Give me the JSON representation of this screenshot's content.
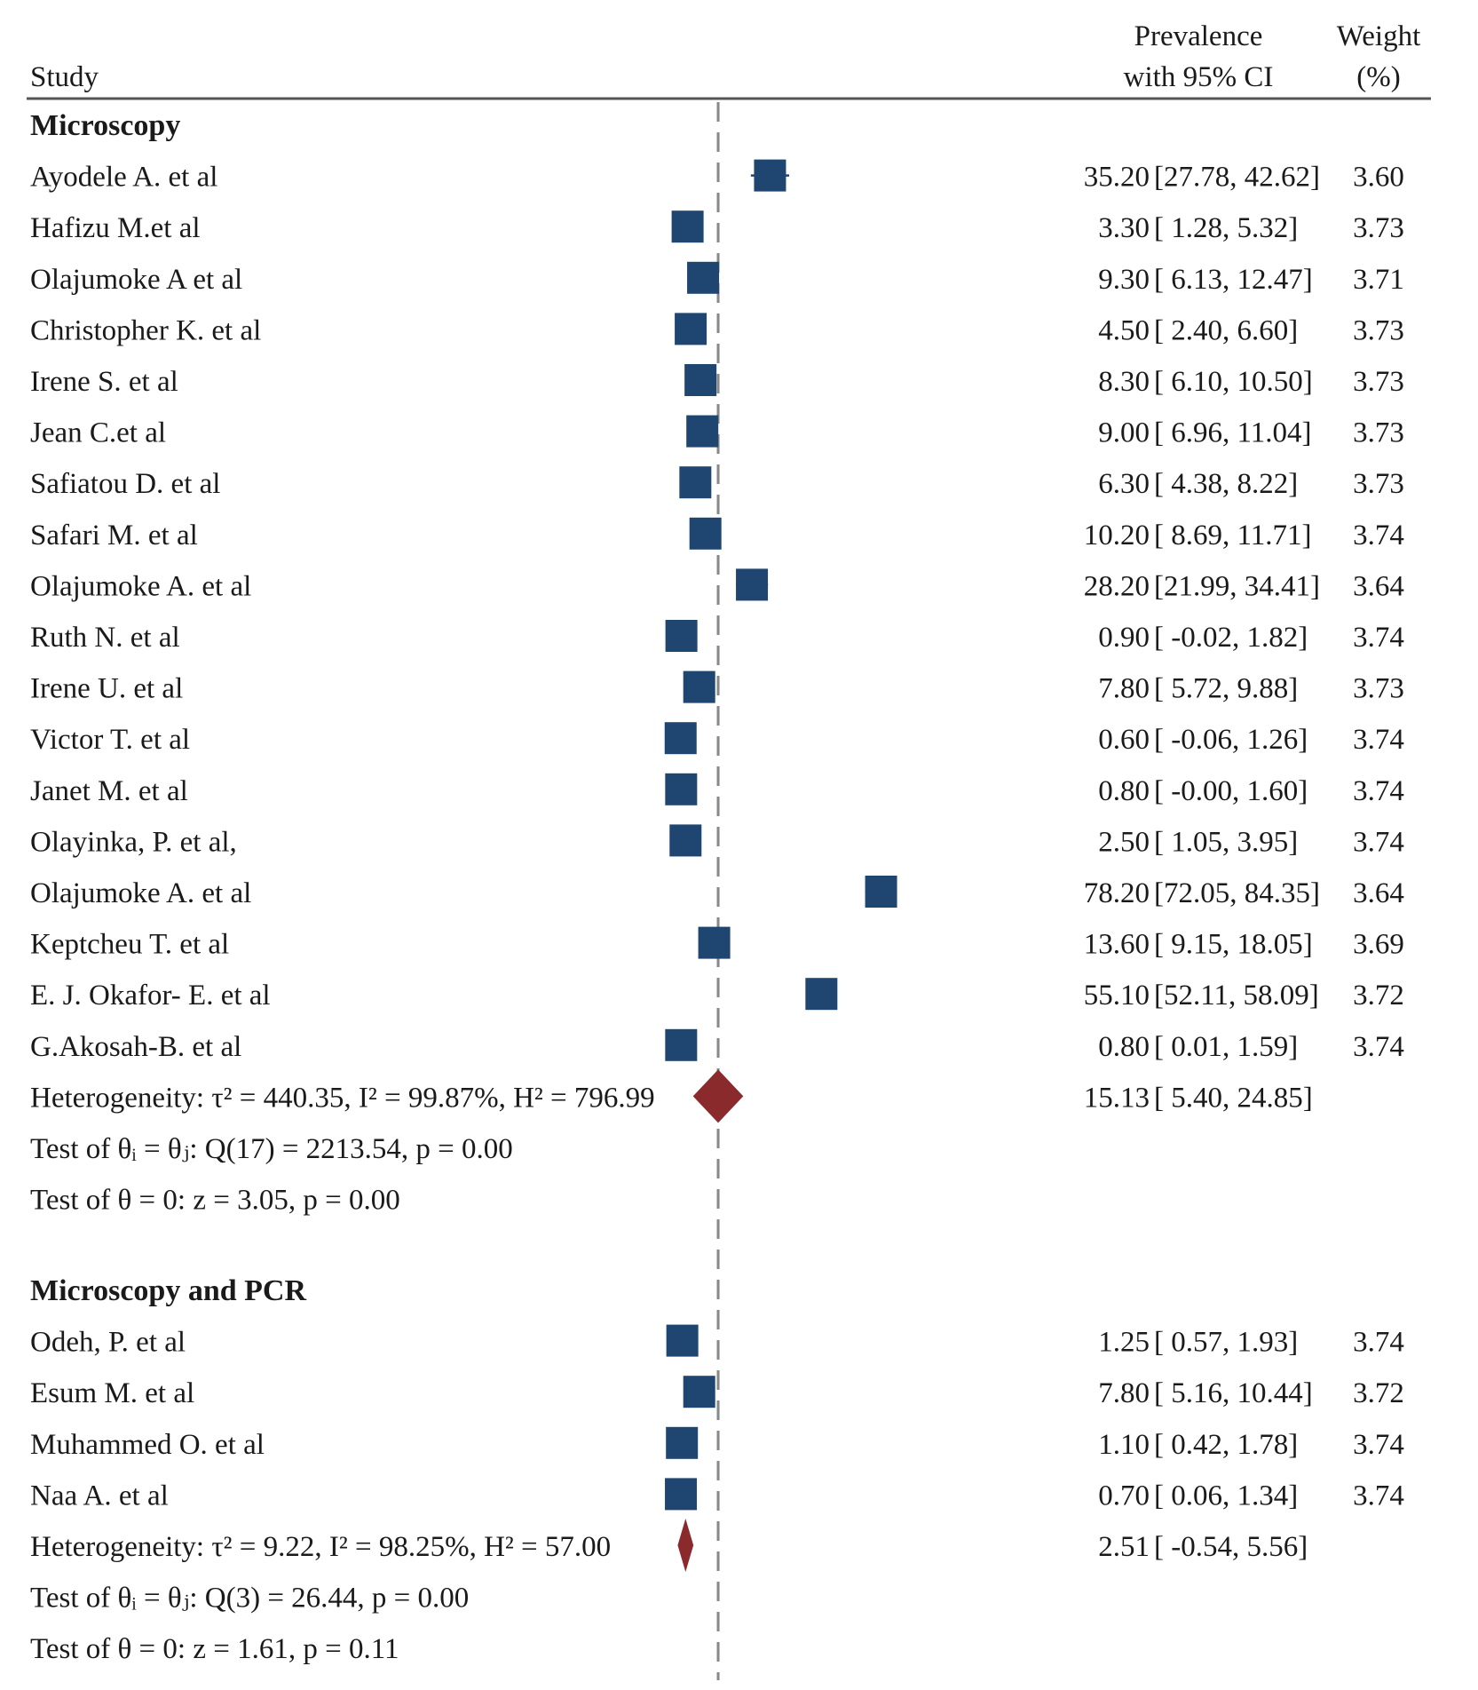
{
  "chart_data": {
    "type": "forest",
    "headers": {
      "study": "Study",
      "prevalence_line1": "Prevalence",
      "prevalence_line2": "with 95% CI",
      "weight_line1": "Weight",
      "weight_line2": "(%)"
    },
    "x_range": [
      -10,
      90
    ],
    "reference_line": 15.13,
    "colors": {
      "marker": "#1f4670",
      "diamond": "#8b2a2c",
      "reference": "#888888",
      "rule": "#555555"
    },
    "groups": [
      {
        "name": "Microscopy",
        "studies": [
          {
            "label": "Ayodele A.  et al",
            "est": 35.2,
            "lo": 27.78,
            "hi": 42.62,
            "est_text": "35.20",
            "ci_text": "[27.78, 42.62]",
            "weight": "3.60"
          },
          {
            "label": "Hafizu M.et al",
            "est": 3.3,
            "lo": 1.28,
            "hi": 5.32,
            "est_text": "3.30",
            "ci_text": "[  1.28,   5.32]",
            "weight": "3.73"
          },
          {
            "label": "Olajumoke A et al",
            "est": 9.3,
            "lo": 6.13,
            "hi": 12.47,
            "est_text": "9.30",
            "ci_text": "[  6.13,  12.47]",
            "weight": "3.71"
          },
          {
            "label": "Christopher K. et al",
            "est": 4.5,
            "lo": 2.4,
            "hi": 6.6,
            "est_text": "4.50",
            "ci_text": "[  2.40,   6.60]",
            "weight": "3.73"
          },
          {
            "label": "Irene S. et al",
            "est": 8.3,
            "lo": 6.1,
            "hi": 10.5,
            "est_text": "8.30",
            "ci_text": "[  6.10,  10.50]",
            "weight": "3.73"
          },
          {
            "label": "Jean C.et al",
            "est": 9.0,
            "lo": 6.96,
            "hi": 11.04,
            "est_text": "9.00",
            "ci_text": "[  6.96,  11.04]",
            "weight": "3.73"
          },
          {
            "label": "Safiatou D. et al",
            "est": 6.3,
            "lo": 4.38,
            "hi": 8.22,
            "est_text": "6.30",
            "ci_text": "[  4.38,   8.22]",
            "weight": "3.73"
          },
          {
            "label": "Safari M. et al",
            "est": 10.2,
            "lo": 8.69,
            "hi": 11.71,
            "est_text": "10.20",
            "ci_text": "[  8.69,  11.71]",
            "weight": "3.74"
          },
          {
            "label": "Olajumoke A. et al",
            "est": 28.2,
            "lo": 21.99,
            "hi": 34.41,
            "est_text": "28.20",
            "ci_text": "[21.99, 34.41]",
            "weight": "3.64"
          },
          {
            "label": "Ruth N. et al",
            "est": 0.9,
            "lo": -0.02,
            "hi": 1.82,
            "est_text": "0.90",
            "ci_text": "[ -0.02,   1.82]",
            "weight": "3.74"
          },
          {
            "label": "Irene U. et al",
            "est": 7.8,
            "lo": 5.72,
            "hi": 9.88,
            "est_text": "7.80",
            "ci_text": "[  5.72,   9.88]",
            "weight": "3.73"
          },
          {
            "label": "Victor T. et al",
            "est": 0.6,
            "lo": -0.06,
            "hi": 1.26,
            "est_text": "0.60",
            "ci_text": "[ -0.06,   1.26]",
            "weight": "3.74"
          },
          {
            "label": "Janet M. et al",
            "est": 0.8,
            "lo": -0.0,
            "hi": 1.6,
            "est_text": "0.80",
            "ci_text": "[ -0.00,   1.60]",
            "weight": "3.74"
          },
          {
            "label": "Olayinka, P. et al,",
            "est": 2.5,
            "lo": 1.05,
            "hi": 3.95,
            "est_text": "2.50",
            "ci_text": "[  1.05,   3.95]",
            "weight": "3.74"
          },
          {
            "label": "Olajumoke A. et al",
            "est": 78.2,
            "lo": 72.05,
            "hi": 84.35,
            "est_text": "78.20",
            "ci_text": "[72.05, 84.35]",
            "weight": "3.64"
          },
          {
            "label": "Keptcheu T. et al",
            "est": 13.6,
            "lo": 9.15,
            "hi": 18.05,
            "est_text": "13.60",
            "ci_text": "[  9.15,  18.05]",
            "weight": "3.69"
          },
          {
            "label": "E. J. Okafor- E. et al",
            "est": 55.1,
            "lo": 52.11,
            "hi": 58.09,
            "est_text": "55.10",
            "ci_text": "[52.11, 58.09]",
            "weight": "3.72"
          },
          {
            "label": "G.Akosah-B. et al",
            "est": 0.8,
            "lo": 0.01,
            "hi": 1.59,
            "est_text": "0.80",
            "ci_text": "[  0.01,   1.59]",
            "weight": "3.74"
          }
        ],
        "pooled": {
          "label": "Heterogeneity: τ² = 440.35, I² = 99.87%, H² = 796.99",
          "est": 15.13,
          "lo": 5.4,
          "hi": 24.85,
          "est_text": "15.13",
          "ci_text": "[  5.40,  24.85]"
        },
        "tests": [
          "Test of θᵢ = θⱼ: Q(17) = 2213.54, p = 0.00",
          "Test of θ = 0: z = 3.05, p = 0.00"
        ]
      },
      {
        "name": "Microscopy and PCR",
        "studies": [
          {
            "label": "Odeh, P. et al",
            "est": 1.25,
            "lo": 0.57,
            "hi": 1.93,
            "est_text": "1.25",
            "ci_text": "[  0.57,   1.93]",
            "weight": "3.74"
          },
          {
            "label": "Esum M. et al",
            "est": 7.8,
            "lo": 5.16,
            "hi": 10.44,
            "est_text": "7.80",
            "ci_text": "[  5.16,  10.44]",
            "weight": "3.72"
          },
          {
            "label": "Muhammed O.  et al",
            "est": 1.1,
            "lo": 0.42,
            "hi": 1.78,
            "est_text": "1.10",
            "ci_text": "[  0.42,   1.78]",
            "weight": "3.74"
          },
          {
            "label": "Naa A. et al",
            "est": 0.7,
            "lo": 0.06,
            "hi": 1.34,
            "est_text": "0.70",
            "ci_text": "[  0.06,   1.34]",
            "weight": "3.74"
          }
        ],
        "pooled": {
          "label": "Heterogeneity: τ² = 9.22, I² = 98.25%, H² = 57.00",
          "est": 2.51,
          "lo": -0.54,
          "hi": 5.56,
          "est_text": "2.51",
          "ci_text": "[ -0.54,   5.56]"
        },
        "tests": [
          "Test of θᵢ = θⱼ: Q(3) = 26.44, p = 0.00",
          "Test of θ = 0: z = 1.61, p = 0.11"
        ]
      }
    ]
  }
}
